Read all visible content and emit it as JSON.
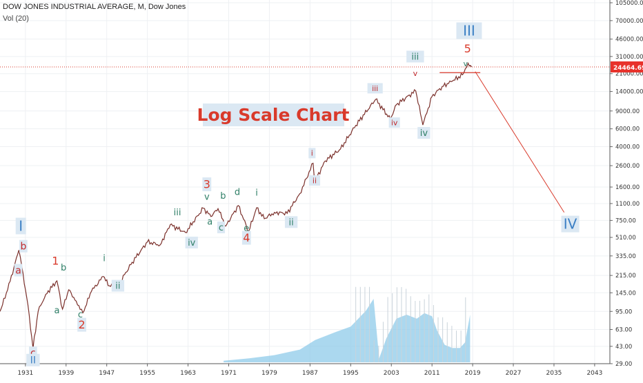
{
  "header": {
    "symbol_line": "DOW JONES INDUSTRIAL AVERAGE, M, Dow Jones",
    "volume_line": "Vol (20)"
  },
  "chart_data": {
    "type": "line",
    "title": "Log Scale Chart",
    "yscale": "log",
    "ylim": [
      29,
      105000
    ],
    "xlim": [
      1926,
      2046
    ],
    "grid": true,
    "price_label": "24464.69",
    "price_label_color": "#e8322b",
    "colors": {
      "accent_red": "#d93a2b",
      "wave_green": "#2f7f67",
      "wave_blue": "#3b7fc4",
      "label_bg": "#dbe8f3",
      "volume": "#8fcbe9",
      "price_line": "#7a2f2a"
    },
    "x_ticks": [
      "1931",
      "1939",
      "1947",
      "1955",
      "1963",
      "1971",
      "1979",
      "1987",
      "1995",
      "2003",
      "2011",
      "2019",
      "2027",
      "2035",
      "2043"
    ],
    "y_ticks": [
      "105000.00",
      "70000.00",
      "46000.00",
      "31000.00",
      "21000.00",
      "14000.00",
      "9000.00",
      "6000.00",
      "4000.00",
      "2600.00",
      "1600.00",
      "1100.00",
      "750.00",
      "510.00",
      "335.00",
      "215.00",
      "145.00",
      "95.00",
      "63.00",
      "43.00",
      "29.00"
    ],
    "series": [
      {
        "x": [
          1926,
          1927.5,
          1929.7,
          1930.3,
          1931.5,
          1932.5,
          1933.5,
          1935,
          1937.2,
          1938.3,
          1939.5,
          1941,
          1942.3,
          1944,
          1946.3,
          1947.5,
          1949.5,
          1952,
          1955,
          1957.5,
          1959.5,
          1962.5,
          1966,
          1967.5,
          1968.9,
          1970.4,
          1972.9,
          1974.9,
          1976.5,
          1978,
          1980,
          1982.5,
          1985,
          1987.6,
          1987.9,
          1990,
          1993,
          1996,
          1999.9,
          2002.8,
          2004,
          2007.8,
          2009.2,
          2011,
          2013,
          2015,
          2017,
          2018.1,
          2018.8
        ],
        "values": [
          95,
          155,
          382,
          260,
          110,
          41,
          95,
          140,
          190,
          100,
          155,
          120,
          92,
          150,
          210,
          170,
          180,
          290,
          460,
          430,
          680,
          570,
          990,
          820,
          980,
          660,
          1050,
          580,
          1000,
          780,
          900,
          880,
          1380,
          2750,
          1800,
          2900,
          3800,
          6500,
          11700,
          7500,
          10400,
          14200,
          6550,
          12500,
          15700,
          17700,
          20500,
          26600,
          24465
        ]
      }
    ],
    "projection": {
      "x": [
        2019.5,
        2037
      ],
      "values": [
        22000,
        900
      ]
    },
    "horizontal_line": 24465,
    "volume": {
      "x": [
        1970,
        1975,
        1980,
        1985,
        1988,
        1992,
        1995,
        1998,
        1999.5,
        2000.6,
        2002,
        2004,
        2006,
        2008,
        2009.5,
        2011,
        2012,
        2013.5,
        2015,
        2016.5,
        2017.5,
        2018.5
      ],
      "values": [
        0.02,
        0.05,
        0.09,
        0.16,
        0.28,
        0.38,
        0.45,
        0.65,
        0.8,
        0.05,
        0.3,
        0.55,
        0.6,
        0.55,
        0.62,
        0.58,
        0.4,
        0.22,
        0.18,
        0.18,
        0.25,
        0.6
      ]
    },
    "annotations": [
      {
        "text": "I",
        "x": 1930.1,
        "y": 640,
        "color": "#3b7fc4",
        "bg": true,
        "size": 20,
        "serif": true
      },
      {
        "text": "b",
        "x": 1930.6,
        "y": 405,
        "color": "#c0282b",
        "bg": true,
        "size": 14
      },
      {
        "text": "a",
        "x": 1929.6,
        "y": 235,
        "color": "#c0282b",
        "bg": true,
        "size": 14
      },
      {
        "text": "c",
        "x": 1932.5,
        "y": 36,
        "color": "#c0282b",
        "bg": true,
        "size": 14
      },
      {
        "text": "II",
        "x": 1932.5,
        "y": 30.5,
        "color": "#3b7fc4",
        "bg": true,
        "size": 14
      },
      {
        "text": "1",
        "x": 1936.9,
        "y": 290,
        "color": "#d93a2b",
        "bg": false,
        "size": 16
      },
      {
        "text": "b",
        "x": 1938.5,
        "y": 250,
        "color": "#2f7f67",
        "bg": false,
        "size": 13
      },
      {
        "text": "a",
        "x": 1937.2,
        "y": 95,
        "color": "#2f7f67",
        "bg": false,
        "size": 13
      },
      {
        "text": "c",
        "x": 1941.8,
        "y": 86,
        "color": "#2f7f67",
        "bg": false,
        "size": 13
      },
      {
        "text": "2",
        "x": 1942.1,
        "y": 68,
        "color": "#d93a2b",
        "bg": true,
        "size": 16
      },
      {
        "text": "i",
        "x": 1946.5,
        "y": 310,
        "color": "#2f7f67",
        "bg": false,
        "size": 13
      },
      {
        "text": "ii",
        "x": 1949.2,
        "y": 165,
        "color": "#2f7f67",
        "bg": true,
        "size": 13
      },
      {
        "text": "iii",
        "x": 1960.9,
        "y": 875,
        "color": "#2f7f67",
        "bg": false,
        "size": 13
      },
      {
        "text": "iv",
        "x": 1963.7,
        "y": 440,
        "color": "#2f7f67",
        "bg": true,
        "size": 13
      },
      {
        "text": "3",
        "x": 1966.7,
        "y": 1650,
        "color": "#d93a2b",
        "bg": true,
        "size": 16
      },
      {
        "text": "v",
        "x": 1966.7,
        "y": 1250,
        "color": "#2f7f67",
        "bg": false,
        "size": 13
      },
      {
        "text": "a",
        "x": 1967.3,
        "y": 710,
        "color": "#2f7f67",
        "bg": false,
        "size": 13
      },
      {
        "text": "b",
        "x": 1969.9,
        "y": 1280,
        "color": "#2f7f67",
        "bg": false,
        "size": 13
      },
      {
        "text": "c",
        "x": 1969.5,
        "y": 620,
        "color": "#2f7f67",
        "bg": true,
        "size": 13
      },
      {
        "text": "d",
        "x": 1972.7,
        "y": 1390,
        "color": "#2f7f67",
        "bg": false,
        "size": 13
      },
      {
        "text": "e",
        "x": 1974.5,
        "y": 610,
        "color": "#2f7f67",
        "bg": false,
        "size": 13
      },
      {
        "text": "4",
        "x": 1974.5,
        "y": 490,
        "color": "#d93a2b",
        "bg": true,
        "size": 16
      },
      {
        "text": "i",
        "x": 1976.5,
        "y": 1370,
        "color": "#2f7f67",
        "bg": false,
        "size": 13
      },
      {
        "text": "ii",
        "x": 1983.3,
        "y": 700,
        "color": "#2f7f67",
        "bg": true,
        "size": 13
      },
      {
        "text": "i",
        "x": 1987.4,
        "y": 3350,
        "color": "#c0282b",
        "bg": true,
        "size": 11
      },
      {
        "text": "ii",
        "x": 1987.9,
        "y": 1800,
        "color": "#c0282b",
        "bg": true,
        "size": 11
      },
      {
        "text": "iii",
        "x": 1999.8,
        "y": 14600,
        "color": "#c0282b",
        "bg": true,
        "size": 11
      },
      {
        "text": "iv",
        "x": 2003.6,
        "y": 6700,
        "color": "#c0282b",
        "bg": true,
        "size": 11
      },
      {
        "text": "iii",
        "x": 2007.7,
        "y": 30000,
        "color": "#2f7f67",
        "bg": true,
        "size": 13
      },
      {
        "text": "v",
        "x": 2007.7,
        "y": 20500,
        "color": "#c0282b",
        "bg": false,
        "size": 11
      },
      {
        "text": "iv",
        "x": 2009.4,
        "y": 5300,
        "color": "#2f7f67",
        "bg": true,
        "size": 13
      },
      {
        "text": "III",
        "x": 2018.3,
        "y": 54000,
        "color": "#3b7fc4",
        "bg": true,
        "size": 20,
        "serif": true
      },
      {
        "text": "5",
        "x": 2018.0,
        "y": 36000,
        "color": "#d93a2b",
        "bg": false,
        "size": 16
      },
      {
        "text": "v",
        "x": 2017.6,
        "y": 25500,
        "color": "#2f7f67",
        "bg": false,
        "size": 11
      },
      {
        "text": "IV",
        "x": 2038.2,
        "y": 670,
        "color": "#3b7fc4",
        "bg": true,
        "size": 20,
        "serif": true
      }
    ]
  }
}
